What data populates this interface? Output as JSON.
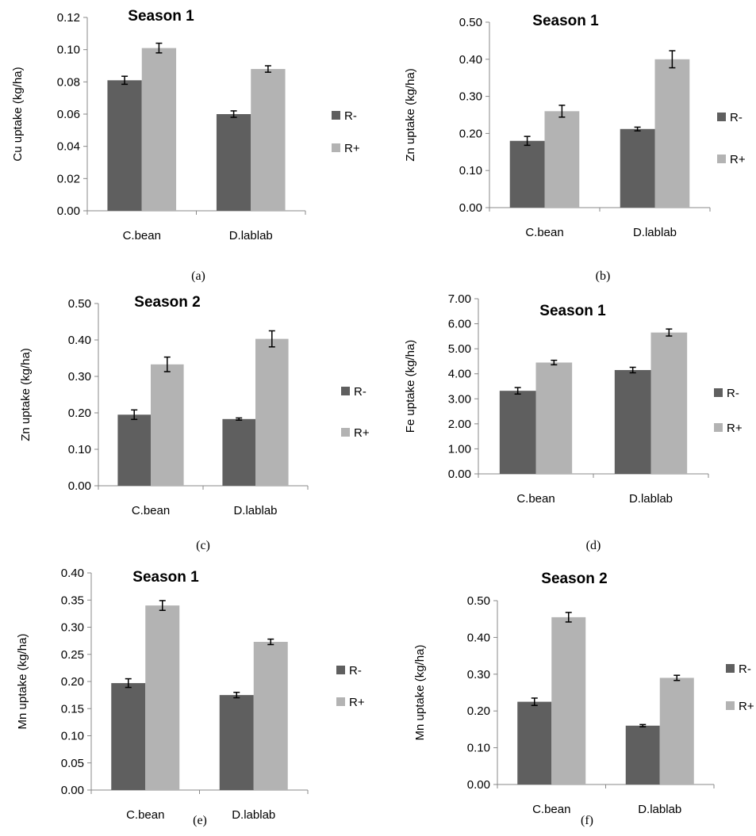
{
  "colors": {
    "R_minus": "#5f5f5f",
    "R_plus": "#b3b3b3",
    "axis": "#888888",
    "errorbar": "#000000"
  },
  "chart_data": [
    {
      "type": "bar",
      "panel": "(a)",
      "title": "Season 1",
      "ylabel": "Cu uptake (kg/ha)",
      "categories": [
        "C.bean",
        "D.lablab"
      ],
      "series": [
        {
          "name": "R-",
          "values": [
            0.081,
            0.06
          ],
          "errors": [
            0.0025,
            0.002
          ]
        },
        {
          "name": "R+",
          "values": [
            0.101,
            0.088
          ],
          "errors": [
            0.003,
            0.002
          ]
        }
      ],
      "ylim": [
        0,
        0.12
      ],
      "ticks": [
        "0.00",
        "0.02",
        "0.04",
        "0.06",
        "0.08",
        "0.10",
        "0.12"
      ],
      "legend": "right"
    },
    {
      "type": "bar",
      "panel": "(b)",
      "title": "Season 1",
      "ylabel": "Zn uptake (kg/ha)",
      "categories": [
        "C.bean",
        "D.lablab"
      ],
      "series": [
        {
          "name": "R-",
          "values": [
            0.18,
            0.212
          ],
          "errors": [
            0.012,
            0.005
          ]
        },
        {
          "name": "R+",
          "values": [
            0.26,
            0.4
          ],
          "errors": [
            0.016,
            0.023
          ]
        }
      ],
      "ylim": [
        0,
        0.5
      ],
      "ticks": [
        "0.00",
        "0.10",
        "0.20",
        "0.30",
        "0.40",
        "0.50"
      ],
      "legend": "right"
    },
    {
      "type": "bar",
      "panel": "(c)",
      "title": "Season 2",
      "ylabel": "Zn uptake (kg/ha)",
      "categories": [
        "C.bean",
        "D.lablab"
      ],
      "series": [
        {
          "name": "R-",
          "values": [
            0.195,
            0.183
          ],
          "errors": [
            0.013,
            0.003
          ]
        },
        {
          "name": "R+",
          "values": [
            0.333,
            0.403
          ],
          "errors": [
            0.02,
            0.022
          ]
        }
      ],
      "ylim": [
        0,
        0.5
      ],
      "ticks": [
        "0.00",
        "0.10",
        "0.20",
        "0.30",
        "0.40",
        "0.50"
      ],
      "legend": "right"
    },
    {
      "type": "bar",
      "panel": "(d)",
      "title": "Season 1",
      "ylabel": "Fe uptake (kg/ha)",
      "categories": [
        "C.bean",
        "D.lablab"
      ],
      "series": [
        {
          "name": "R-",
          "values": [
            3.32,
            4.15
          ],
          "errors": [
            0.13,
            0.11
          ]
        },
        {
          "name": "R+",
          "values": [
            4.45,
            5.65
          ],
          "errors": [
            0.09,
            0.14
          ]
        }
      ],
      "ylim": [
        0,
        7
      ],
      "ticks": [
        "0.00",
        "1.00",
        "2.00",
        "3.00",
        "4.00",
        "5.00",
        "6.00",
        "7.00"
      ],
      "legend": "right"
    },
    {
      "type": "bar",
      "panel": "(e)",
      "title": "Season 1",
      "ylabel": "Mn uptake (kg/ha)",
      "categories": [
        "C.bean",
        "D.lablab"
      ],
      "series": [
        {
          "name": "R-",
          "values": [
            0.197,
            0.175
          ],
          "errors": [
            0.008,
            0.005
          ]
        },
        {
          "name": "R+",
          "values": [
            0.34,
            0.273
          ],
          "errors": [
            0.009,
            0.005
          ]
        }
      ],
      "ylim": [
        0,
        0.4
      ],
      "ticks": [
        "0.00",
        "0.05",
        "0.10",
        "0.15",
        "0.20",
        "0.25",
        "0.30",
        "0.35",
        "0.40"
      ],
      "legend": "right"
    },
    {
      "type": "bar",
      "panel": "(f)",
      "title": "Season 2",
      "ylabel": "Mn uptake (kg/ha)",
      "categories": [
        "C.bean",
        "D.lablab"
      ],
      "series": [
        {
          "name": "R-",
          "values": [
            0.225,
            0.16
          ],
          "errors": [
            0.01,
            0.003
          ]
        },
        {
          "name": "R+",
          "values": [
            0.455,
            0.29
          ],
          "errors": [
            0.013,
            0.007
          ]
        }
      ],
      "ylim": [
        0,
        0.5
      ],
      "ticks": [
        "0.00",
        "0.10",
        "0.20",
        "0.30",
        "0.40",
        "0.50"
      ],
      "legend": "right"
    }
  ]
}
